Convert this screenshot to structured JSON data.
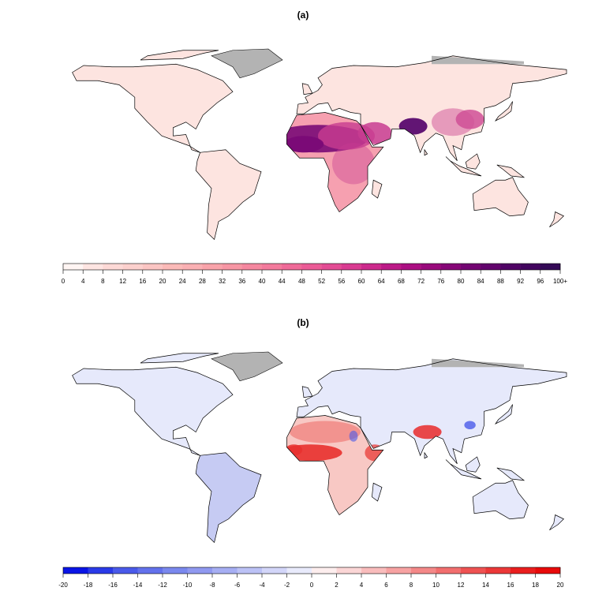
{
  "panels": [
    {
      "label": "(a)",
      "colorbar": {
        "ticks": [
          "0",
          "4",
          "8",
          "12",
          "16",
          "20",
          "24",
          "28",
          "32",
          "36",
          "40",
          "44",
          "48",
          "52",
          "56",
          "60",
          "64",
          "68",
          "72",
          "76",
          "80",
          "84",
          "88",
          "92",
          "96",
          "100+"
        ],
        "colors": [
          "#fff5f3",
          "#fee5e2",
          "#fdd9d6",
          "#fcd0cd",
          "#fbc5c3",
          "#fbbab8",
          "#fab0b3",
          "#f9a3aa",
          "#f796a4",
          "#f5879f",
          "#f37a9c",
          "#ef6a98",
          "#eb5b96",
          "#e34c94",
          "#d93b91",
          "#cc2a8c",
          "#bc1a87",
          "#ab0f82",
          "#990a7c",
          "#860777",
          "#730572",
          "#62046c",
          "#500465",
          "#42055e",
          "#340a56"
        ],
        "no_data_color": "#b3b3b3"
      },
      "land_colors": {
        "base": "#fde4e0",
        "africa": "#f6a0b0",
        "sahel": "#7a0a77",
        "south_asia": "#5a0a6e",
        "china": "#d05096",
        "middle_east": "#c83c90"
      }
    },
    {
      "label": "(b)",
      "colorbar": {
        "ticks": [
          "-20",
          "-18",
          "-16",
          "-14",
          "-12",
          "-10",
          "-8",
          "-6",
          "-4",
          "-2",
          "0",
          "2",
          "4",
          "6",
          "8",
          "10",
          "12",
          "14",
          "16",
          "18",
          "20"
        ],
        "colors": [
          "#0a14e6",
          "#2a3ae8",
          "#4a5aea",
          "#6371ec",
          "#7a88ee",
          "#9099f0",
          "#a6aef3",
          "#bcc2f6",
          "#d3d6f9",
          "#e9ebfc",
          "#fdeeee",
          "#fbd6d6",
          "#f9bcbc",
          "#f7a2a2",
          "#f48888",
          "#f26e6e",
          "#ef5252",
          "#ec3838",
          "#ea1e1e",
          "#e80a0a"
        ],
        "no_data_color": "#b3b3b3"
      },
      "land_colors": {
        "north": "#e6e9fb",
        "africa": "#f8c8c4",
        "sahel": "#e8302e",
        "india": "#e82a2a",
        "south_america": "#c6cbf3",
        "tibet": "#4a5aea"
      }
    }
  ]
}
